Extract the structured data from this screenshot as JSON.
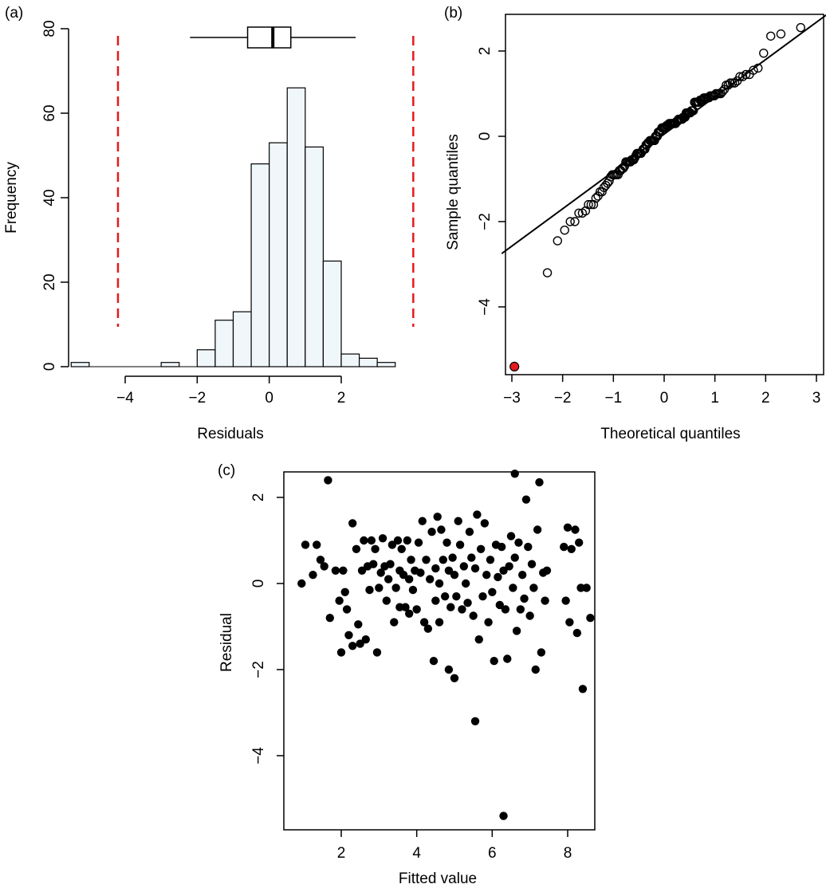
{
  "chart_data": [
    {
      "panel": "(a)",
      "type": "bar",
      "subtype": "histogram_with_boxplot",
      "title": "",
      "xlabel": "Residuals",
      "ylabel": "Frequency",
      "xlim": [
        -5.5,
        3
      ],
      "ylim": [
        0,
        80
      ],
      "xticks": [
        -4,
        -2,
        0,
        2
      ],
      "yticks": [
        0,
        20,
        40,
        60,
        80
      ],
      "bin_width": 0.5,
      "bins": [
        {
          "x0": -5.5,
          "x1": -5.0,
          "count": 1
        },
        {
          "x0": -5.0,
          "x1": -4.5,
          "count": 0
        },
        {
          "x0": -4.5,
          "x1": -4.0,
          "count": 0
        },
        {
          "x0": -4.0,
          "x1": -3.5,
          "count": 0
        },
        {
          "x0": -3.5,
          "x1": -3.0,
          "count": 0
        },
        {
          "x0": -3.0,
          "x1": -2.5,
          "count": 1
        },
        {
          "x0": -2.5,
          "x1": -2.0,
          "count": 0
        },
        {
          "x0": -2.0,
          "x1": -1.5,
          "count": 4
        },
        {
          "x0": -1.5,
          "x1": -1.0,
          "count": 11
        },
        {
          "x0": -1.0,
          "x1": -0.5,
          "count": 13
        },
        {
          "x0": -0.5,
          "x1": 0.0,
          "count": 48
        },
        {
          "x0": 0.0,
          "x1": 0.5,
          "count": 53
        },
        {
          "x0": 0.5,
          "x1": 1.0,
          "count": 66
        },
        {
          "x0": 1.0,
          "x1": 1.5,
          "count": 52
        },
        {
          "x0": 1.5,
          "x1": 2.0,
          "count": 25
        },
        {
          "x0": 2.0,
          "x1": 2.5,
          "count": 3
        },
        {
          "x0": 2.5,
          "x1": 3.0,
          "count": 2
        },
        {
          "x0": 3.0,
          "x1": 3.5,
          "count": 1
        }
      ],
      "boxplot": {
        "whisker_low": -2.2,
        "q1": -0.6,
        "median": 0.1,
        "q3": 0.6,
        "whisker_high": 2.4
      },
      "reference_lines": [
        -4.2,
        4.0
      ],
      "colors": {
        "bar_fill": "#f0f7fb",
        "bar_stroke": "#000000",
        "reference_line": "#e31a1c"
      }
    },
    {
      "panel": "(b)",
      "type": "scatter",
      "subtype": "qq_plot",
      "title": "",
      "xlabel": "Theoretical quantiles",
      "ylabel": "Sample quantiles",
      "xlim": [
        -3.2,
        3.2
      ],
      "ylim": [
        -5.5,
        2.9
      ],
      "xticks": [
        -3,
        -2,
        -1,
        0,
        1,
        2,
        3
      ],
      "yticks": [
        -4,
        -2,
        0,
        2
      ],
      "reference_line": {
        "slope": 0.875,
        "intercept": 0.05
      },
      "highlight_point": {
        "x": -2.95,
        "y": -5.4
      },
      "colors": {
        "point_stroke": "#000000",
        "highlight": "#e31a1c"
      }
    },
    {
      "panel": "(c)",
      "type": "scatter",
      "title": "",
      "xlabel": "Fitted value",
      "ylabel": "Residual",
      "xlim": [
        0.6,
        8.9
      ],
      "ylim": [
        -5.7,
        2.7
      ],
      "xticks": [
        2,
        4,
        6,
        8
      ],
      "yticks": [
        -4,
        -2,
        0,
        2
      ],
      "points": [
        [
          0.95,
          0.0
        ],
        [
          1.05,
          0.9
        ],
        [
          1.25,
          0.2
        ],
        [
          1.35,
          0.9
        ],
        [
          1.45,
          0.55
        ],
        [
          1.55,
          0.4
        ],
        [
          1.65,
          2.4
        ],
        [
          1.7,
          -0.8
        ],
        [
          1.85,
          0.3
        ],
        [
          1.95,
          -0.4
        ],
        [
          2.0,
          -1.6
        ],
        [
          2.05,
          0.3
        ],
        [
          2.1,
          -0.2
        ],
        [
          2.15,
          -0.6
        ],
        [
          2.2,
          -1.2
        ],
        [
          2.3,
          -1.45
        ],
        [
          2.3,
          1.4
        ],
        [
          2.4,
          0.8
        ],
        [
          2.45,
          -0.95
        ],
        [
          2.5,
          -1.4
        ],
        [
          2.55,
          0.3
        ],
        [
          2.6,
          1.0
        ],
        [
          2.65,
          -1.3
        ],
        [
          2.7,
          0.4
        ],
        [
          2.75,
          -0.15
        ],
        [
          2.8,
          1.0
        ],
        [
          2.85,
          0.45
        ],
        [
          2.9,
          0.8
        ],
        [
          2.95,
          -1.6
        ],
        [
          3.0,
          -0.1
        ],
        [
          3.05,
          0.25
        ],
        [
          3.1,
          1.05
        ],
        [
          3.15,
          0.4
        ],
        [
          3.2,
          -0.4
        ],
        [
          3.25,
          0.1
        ],
        [
          3.3,
          0.45
        ],
        [
          3.35,
          0.9
        ],
        [
          3.4,
          -0.9
        ],
        [
          3.45,
          -0.1
        ],
        [
          3.5,
          1.0
        ],
        [
          3.55,
          0.3
        ],
        [
          3.55,
          -0.55
        ],
        [
          3.6,
          0.8
        ],
        [
          3.65,
          0.2
        ],
        [
          3.7,
          -0.55
        ],
        [
          3.75,
          1.0
        ],
        [
          3.8,
          0.1
        ],
        [
          3.8,
          -0.7
        ],
        [
          3.85,
          0.55
        ],
        [
          3.9,
          -0.15
        ],
        [
          3.95,
          0.3
        ],
        [
          4.0,
          -0.6
        ],
        [
          4.05,
          0.95
        ],
        [
          4.1,
          0.25
        ],
        [
          4.15,
          1.45
        ],
        [
          4.2,
          -0.9
        ],
        [
          4.25,
          0.55
        ],
        [
          4.3,
          -1.05
        ],
        [
          4.35,
          0.1
        ],
        [
          4.4,
          1.2
        ],
        [
          4.45,
          -1.8
        ],
        [
          4.5,
          0.35
        ],
        [
          4.5,
          -0.4
        ],
        [
          4.55,
          1.55
        ],
        [
          4.6,
          0.0
        ],
        [
          4.6,
          -0.9
        ],
        [
          4.65,
          1.25
        ],
        [
          4.7,
          0.55
        ],
        [
          4.75,
          -0.3
        ],
        [
          4.8,
          0.95
        ],
        [
          4.85,
          -2.0
        ],
        [
          4.85,
          0.3
        ],
        [
          4.9,
          -0.55
        ],
        [
          4.95,
          0.6
        ],
        [
          5.0,
          -2.2
        ],
        [
          5.0,
          0.2
        ],
        [
          5.05,
          -0.3
        ],
        [
          5.1,
          1.45
        ],
        [
          5.15,
          0.9
        ],
        [
          5.2,
          -0.6
        ],
        [
          5.25,
          0.4
        ],
        [
          5.3,
          0.0
        ],
        [
          5.35,
          -0.45
        ],
        [
          5.4,
          1.2
        ],
        [
          5.45,
          0.6
        ],
        [
          5.5,
          -0.75
        ],
        [
          5.55,
          -3.2
        ],
        [
          5.55,
          0.35
        ],
        [
          5.6,
          1.6
        ],
        [
          5.65,
          -1.3
        ],
        [
          5.7,
          0.8
        ],
        [
          5.75,
          -0.3
        ],
        [
          5.8,
          1.4
        ],
        [
          5.85,
          0.2
        ],
        [
          5.9,
          -0.9
        ],
        [
          5.95,
          0.55
        ],
        [
          6.0,
          -0.2
        ],
        [
          6.05,
          -1.8
        ],
        [
          6.1,
          0.9
        ],
        [
          6.15,
          0.15
        ],
        [
          6.2,
          -0.5
        ],
        [
          6.25,
          0.85
        ],
        [
          6.3,
          -5.4
        ],
        [
          6.3,
          0.3
        ],
        [
          6.35,
          -0.6
        ],
        [
          6.4,
          -1.75
        ],
        [
          6.45,
          0.4
        ],
        [
          6.5,
          1.1
        ],
        [
          6.55,
          -0.1
        ],
        [
          6.6,
          2.55
        ],
        [
          6.6,
          0.6
        ],
        [
          6.65,
          -1.1
        ],
        [
          6.7,
          0.95
        ],
        [
          6.75,
          -0.6
        ],
        [
          6.8,
          0.2
        ],
        [
          6.85,
          -0.35
        ],
        [
          6.9,
          1.95
        ],
        [
          6.95,
          0.85
        ],
        [
          7.0,
          -0.75
        ],
        [
          7.05,
          0.45
        ],
        [
          7.1,
          -0.1
        ],
        [
          7.15,
          -2.0
        ],
        [
          7.2,
          1.25
        ],
        [
          7.25,
          2.35
        ],
        [
          7.3,
          -1.6
        ],
        [
          7.35,
          0.25
        ],
        [
          7.4,
          -0.4
        ],
        [
          7.45,
          0.3
        ],
        [
          7.9,
          0.85
        ],
        [
          7.95,
          -0.4
        ],
        [
          8.0,
          1.3
        ],
        [
          8.05,
          -0.9
        ],
        [
          8.1,
          0.8
        ],
        [
          8.2,
          1.25
        ],
        [
          8.25,
          -1.15
        ],
        [
          8.3,
          0.95
        ],
        [
          8.35,
          -0.1
        ],
        [
          8.4,
          -2.45
        ],
        [
          8.5,
          -0.1
        ],
        [
          8.6,
          -0.8
        ]
      ],
      "colors": {
        "point_fill": "#000000"
      }
    }
  ]
}
